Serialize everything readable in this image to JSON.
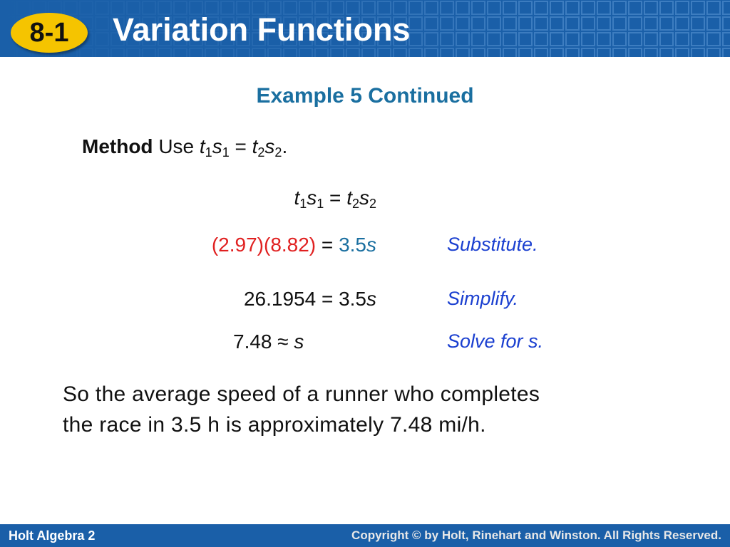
{
  "header": {
    "badge": "8-1",
    "title": "Variation Functions"
  },
  "subtitle": "Example 5 Continued",
  "method": {
    "label": "Method",
    "intro": "Use",
    "equation": [
      "t",
      "1",
      "s",
      "1",
      " = ",
      "t",
      "2",
      "s",
      "2",
      "."
    ]
  },
  "steps": [
    {
      "expr": [
        "t",
        "1",
        "s",
        "1",
        " = ",
        "t",
        "2",
        "s",
        "2"
      ]
    },
    {
      "expr": [
        "(2.97)(8.82)",
        " = ",
        "3.5",
        "s"
      ],
      "note": "Substitute."
    },
    {
      "expr": [
        "26.1954 = 3.5",
        "s"
      ],
      "note": "Simplify."
    },
    {
      "expr": [
        "7.48 ≈ ",
        "s"
      ],
      "note": "Solve for s."
    }
  ],
  "conclusion": [
    "So the average speed of a runner who completes",
    "the race in 3.5 h is approximately 7.48 mi/h."
  ],
  "footer": {
    "left": "Holt Algebra 2",
    "right": "Copyright © by Holt, Rinehart and Winston. All Rights Reserved."
  }
}
